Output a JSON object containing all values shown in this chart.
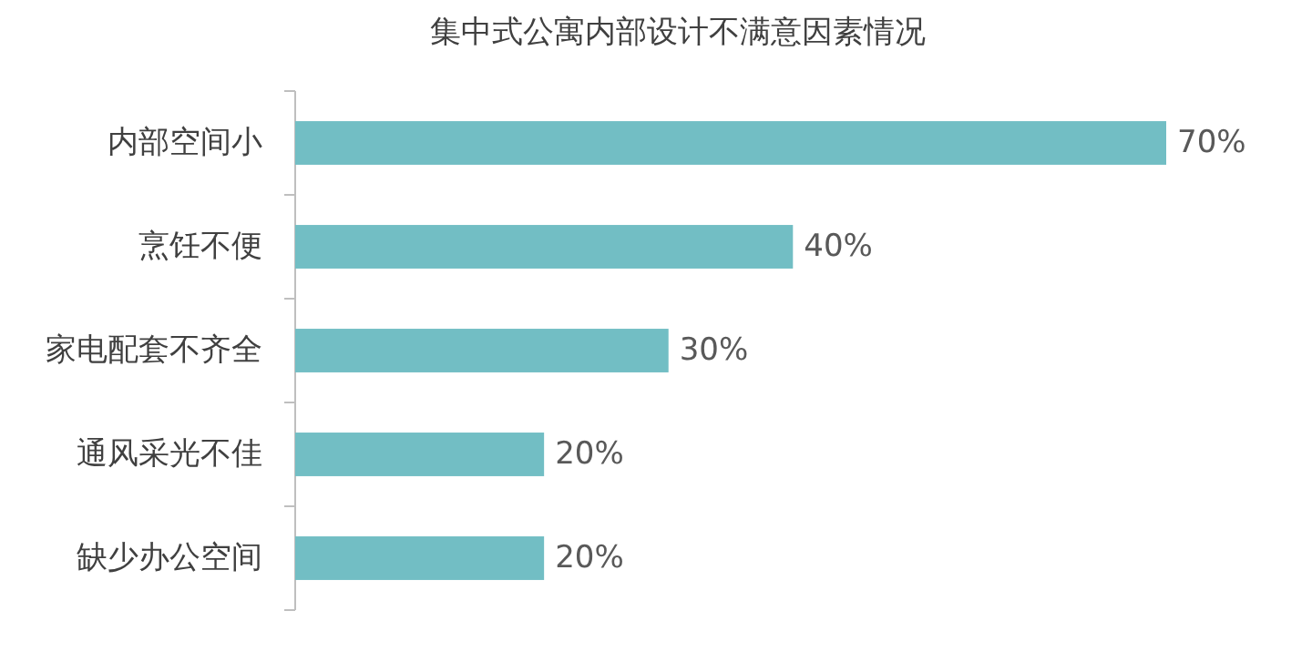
{
  "chart_data": {
    "type": "bar",
    "orientation": "horizontal",
    "title": "集中式公寓内部设计不满意因素情况",
    "categories": [
      "内部空间小",
      "烹饪不便",
      "家电配套不齐全",
      "通风采光不佳",
      "缺少办公空间"
    ],
    "values": [
      70,
      40,
      30,
      20,
      20
    ],
    "value_labels": [
      "70%",
      "40%",
      "30%",
      "20%",
      "20%"
    ],
    "color": "#72bec4"
  }
}
